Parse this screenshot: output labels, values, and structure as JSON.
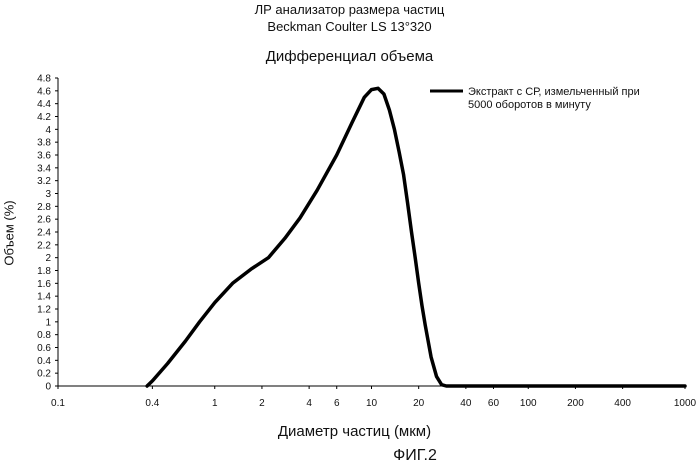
{
  "header": {
    "line1": "ЛР анализатор размера частиц",
    "line2": "Beckman Coulter LS 13°320"
  },
  "figure_label": "ФИГ.2",
  "chart_data": {
    "type": "line",
    "title": "Дифференциал объема",
    "xlabel": "Диаметр частиц (мкм)",
    "ylabel": "Объем (%)",
    "x_scale": "log",
    "xlim": [
      0.1,
      1000
    ],
    "ylim": [
      0,
      4.8
    ],
    "x_ticks": [
      "0.1",
      "0.4",
      "1",
      "2",
      "4",
      "6",
      "10",
      "20",
      "40",
      "60",
      "100",
      "200",
      "400",
      "1000"
    ],
    "y_ticks": [
      "0",
      "0.2",
      "0.4",
      "0.6",
      "0.8",
      "1",
      "1.2",
      "1.4",
      "1.6",
      "1.8",
      "2",
      "2.2",
      "2.4",
      "2.6",
      "2.8",
      "3",
      "3.2",
      "3.4",
      "3.6",
      "3.8",
      "4",
      "4.2",
      "4.4",
      "4.6",
      "4.8"
    ],
    "grid": false,
    "legend_position": "top-right",
    "series": [
      {
        "name": "Экстракт с СР, измельченный при 5000 оборотов в минуту",
        "color": "#000000",
        "x": [
          0.37,
          0.4,
          0.5,
          0.65,
          0.8,
          1.0,
          1.3,
          1.7,
          2.2,
          2.8,
          3.5,
          4.5,
          6.0,
          7.5,
          9.0,
          10.0,
          11.0,
          12.0,
          13.0,
          14.0,
          15.0,
          16.0,
          17.0,
          18.0,
          19.0,
          20.0,
          21.0,
          22.0,
          24.0,
          26.0,
          28.0,
          30.0,
          40.0,
          60.0,
          100.0,
          200.0,
          400.0,
          1000.0
        ],
        "y": [
          0.0,
          0.08,
          0.35,
          0.7,
          1.0,
          1.3,
          1.6,
          1.82,
          2.0,
          2.3,
          2.62,
          3.05,
          3.6,
          4.1,
          4.5,
          4.62,
          4.64,
          4.55,
          4.3,
          4.0,
          3.65,
          3.3,
          2.85,
          2.4,
          2.0,
          1.6,
          1.25,
          0.95,
          0.45,
          0.15,
          0.02,
          0.0,
          0.0,
          0.0,
          0.0,
          0.0,
          0.0,
          0.0
        ]
      }
    ]
  }
}
